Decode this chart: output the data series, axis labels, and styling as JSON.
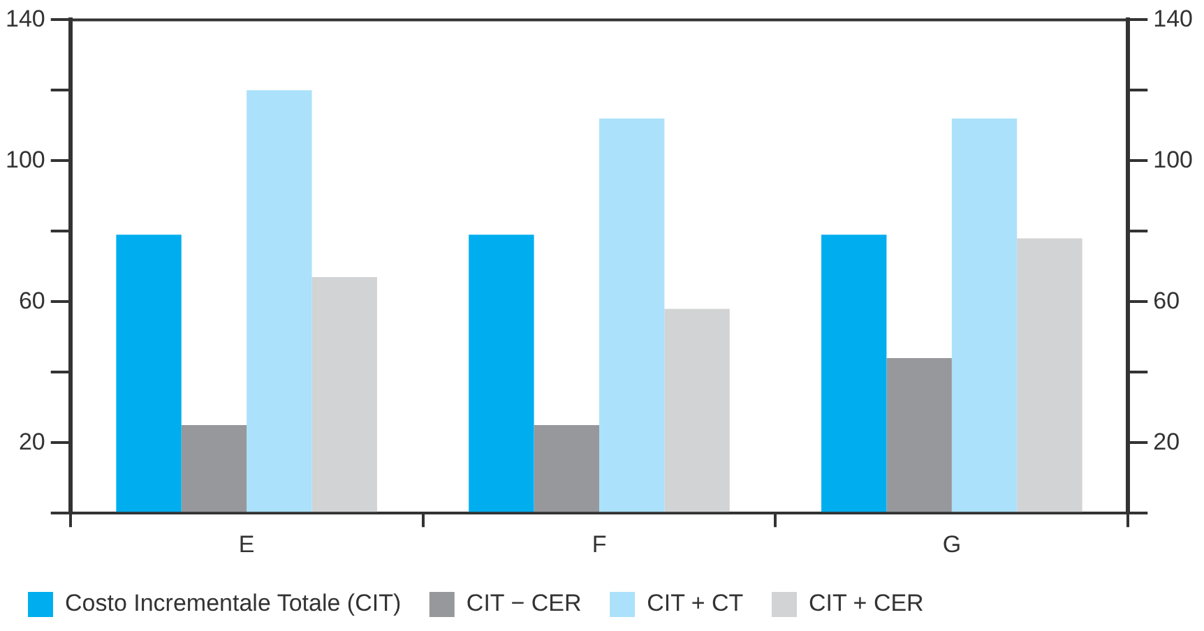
{
  "chart_data": {
    "type": "bar",
    "categories": [
      "E",
      "F",
      "G"
    ],
    "series": [
      {
        "name": "Costo Incrementale Totale (CIT)",
        "color": "#00aeef",
        "values": [
          79,
          79,
          79
        ]
      },
      {
        "name": "CIT − CER",
        "color": "#97989c",
        "values": [
          25,
          25,
          44
        ]
      },
      {
        "name": "CIT + CT",
        "color": "#abe1fa",
        "values": [
          120,
          112,
          112
        ]
      },
      {
        "name": "CIT + CER",
        "color": "#d1d3d4",
        "values": [
          67,
          58,
          78
        ]
      }
    ],
    "ylim": [
      0,
      140
    ],
    "yticks": [
      {
        "value": 0,
        "label": null
      },
      20,
      {
        "value": 40,
        "label": null
      },
      60,
      {
        "value": 80,
        "label": null
      },
      100,
      {
        "value": 120,
        "label": null
      },
      140
    ],
    "y2lim": [
      0,
      140
    ],
    "y2ticks": [
      {
        "value": 0,
        "label": null
      },
      20,
      {
        "value": 40,
        "label": null
      },
      60,
      {
        "value": 80,
        "label": null
      },
      100,
      {
        "value": 120,
        "label": null
      },
      140
    ],
    "grid": false,
    "legend": "bottom left"
  }
}
